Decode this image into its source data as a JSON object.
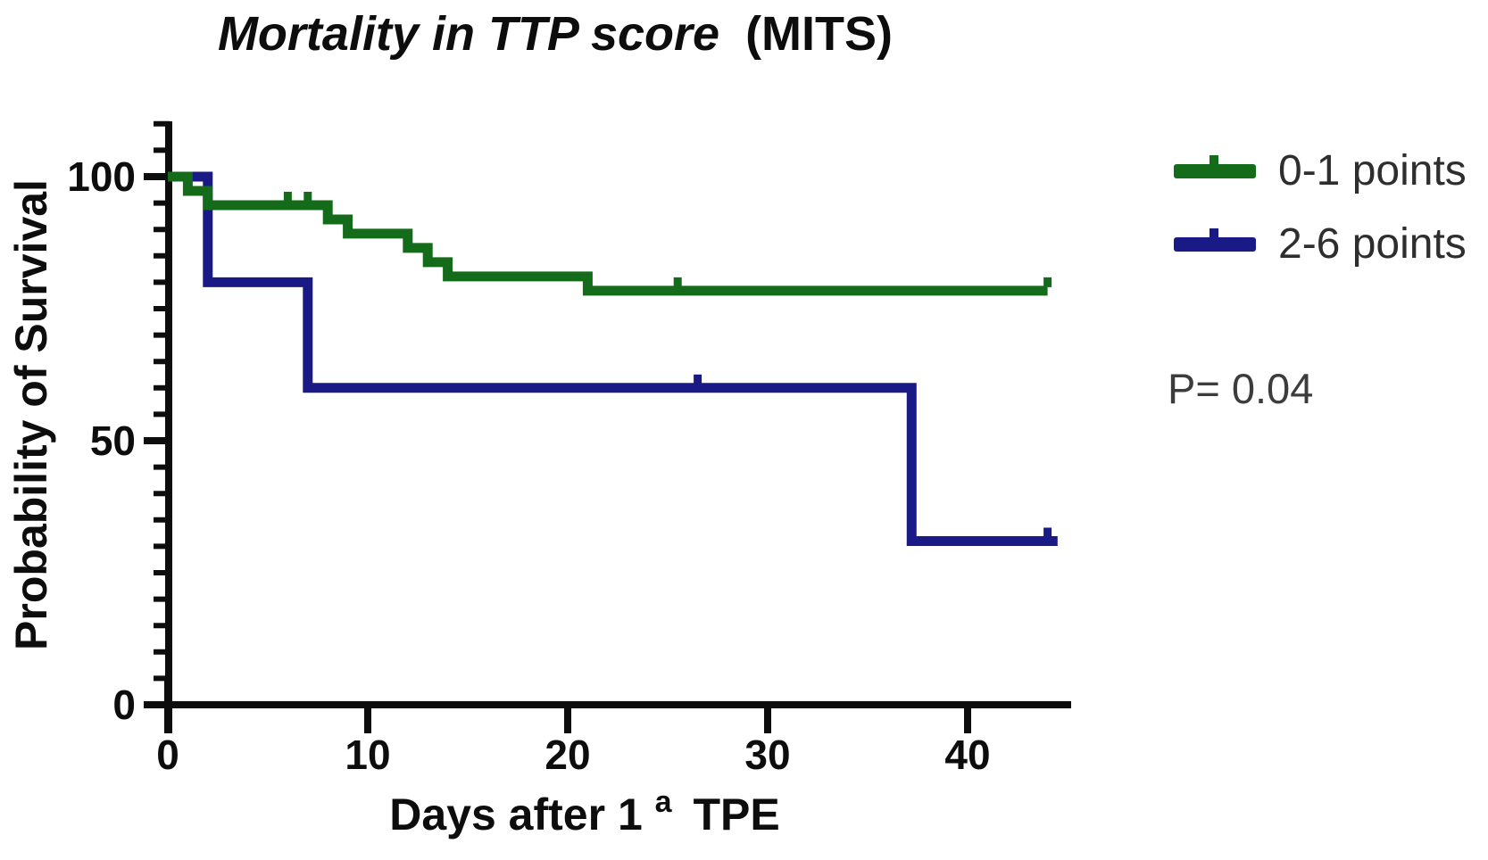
{
  "title": {
    "italic_part": "Mortality in TTP score",
    "regular_part": "(MITS)"
  },
  "y_axis": {
    "label": "Probability of Survival",
    "tick_labels": [
      "0",
      "50",
      "100"
    ]
  },
  "x_axis": {
    "label_main": "Days after 1",
    "label_superscript": "a",
    "label_rest": "TPE",
    "tick_labels": [
      "0",
      "10",
      "20",
      "30",
      "40"
    ]
  },
  "legend": {
    "items": [
      {
        "label": "0-1 points",
        "color": "#146b19"
      },
      {
        "label": "2-6 points",
        "color": "#1a1a87"
      }
    ]
  },
  "annotation": {
    "p_value": "P= 0.04"
  },
  "colors": {
    "axis": "#0d0d0d",
    "legend_text": "#2e2e2e",
    "p_value_text": "#3c3c3c"
  },
  "chart_data": {
    "type": "line",
    "subtype": "kaplan-meier-step",
    "title": "Mortality in TTP score (MITS)",
    "xlabel": "Days after 1ª TPE",
    "ylabel": "Probability of Survival",
    "xlim": [
      0,
      45
    ],
    "ylim": [
      0,
      110
    ],
    "x_ticks": [
      0,
      10,
      20,
      30,
      40
    ],
    "y_ticks": [
      0,
      50,
      100
    ],
    "y_minor_tick_step": 5,
    "y_minor_tick_max": 110,
    "grid": false,
    "legend_position": "right",
    "p_value_text": "P= 0.04",
    "series": [
      {
        "name": "0-1 points",
        "color": "#146b19",
        "points": [
          [
            0,
            100
          ],
          [
            1,
            97.3
          ],
          [
            2,
            94.6
          ],
          [
            8,
            91.9
          ],
          [
            9,
            89.2
          ],
          [
            12,
            86.5
          ],
          [
            13,
            83.8
          ],
          [
            14,
            81.1
          ],
          [
            21,
            78.4
          ],
          [
            44,
            78.4
          ]
        ],
        "censor_marks": [
          [
            6,
            94.6
          ],
          [
            7,
            94.6
          ],
          [
            25.5,
            78.4
          ],
          [
            44,
            78.4
          ]
        ]
      },
      {
        "name": "2-6 points",
        "color": "#1a1a87",
        "points": [
          [
            0,
            100
          ],
          [
            2,
            80
          ],
          [
            7,
            60
          ],
          [
            37.2,
            31
          ],
          [
            44.5,
            31
          ]
        ],
        "censor_marks": [
          [
            26.5,
            60
          ],
          [
            44,
            31
          ]
        ]
      }
    ]
  }
}
